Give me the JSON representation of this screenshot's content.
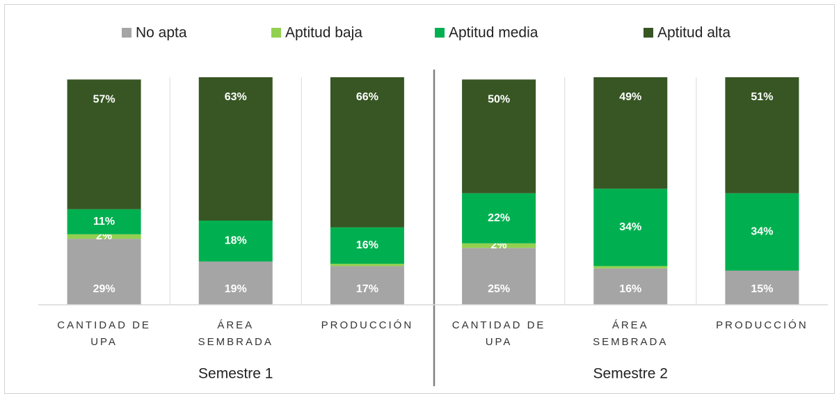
{
  "chart_data": {
    "type": "stacked_bar",
    "legend": "top",
    "ylim": [
      0,
      100
    ],
    "categories": [
      "CANTIDAD DE UPA",
      "ÁREA SEMBRADA",
      "PRODUCCIÓN",
      "CANTIDAD DE UPA",
      "ÁREA SEMBRADA",
      "PRODUCCIÓN"
    ],
    "groups": [
      "Semestre 1",
      "Semestre 2"
    ],
    "series": [
      {
        "name": "No apta",
        "color": "#a5a5a5",
        "values": [
          29,
          19,
          17,
          25,
          16,
          15
        ],
        "value_labels": [
          "29%",
          "19%",
          "17%",
          "25%",
          "16%",
          "15%"
        ]
      },
      {
        "name": "Aptitud baja",
        "color": "#92d050",
        "values": [
          2,
          0,
          1,
          2,
          1,
          0
        ],
        "value_labels": [
          "2%",
          null,
          null,
          "2%",
          null,
          null
        ]
      },
      {
        "name": "Aptitud media",
        "color": "#00b050",
        "values": [
          11,
          18,
          16,
          22,
          34,
          34
        ],
        "value_labels": [
          "11%",
          "18%",
          "16%",
          "22%",
          "34%",
          "34%"
        ]
      },
      {
        "name": "Aptitud alta",
        "color": "#375623",
        "values": [
          57,
          63,
          66,
          50,
          49,
          51
        ],
        "value_labels": [
          "57%",
          "63%",
          "66%",
          "50%",
          "49%",
          "51%"
        ]
      }
    ]
  }
}
